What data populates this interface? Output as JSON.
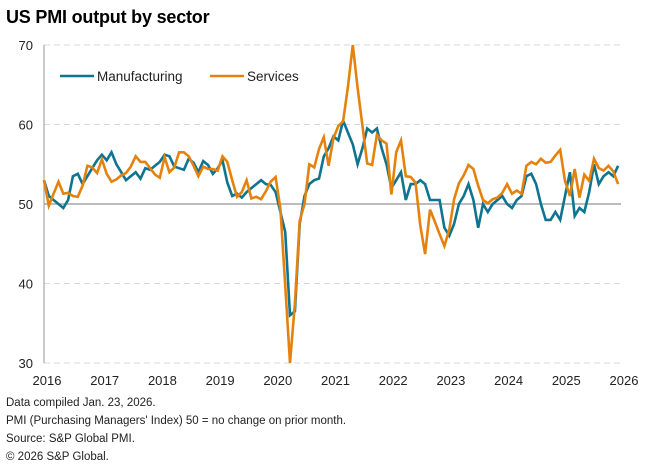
{
  "chart_data": {
    "type": "line",
    "title": "US PMI output by sector",
    "xlabel": "",
    "ylabel": "",
    "ylim": [
      30,
      70
    ],
    "yticks": [
      30,
      40,
      50,
      60,
      70
    ],
    "xticks": [
      "2016",
      "2017",
      "2018",
      "2019",
      "2020",
      "2021",
      "2022",
      "2023",
      "2024",
      "2025",
      "2026"
    ],
    "xrange": [
      2016.0,
      2026.0
    ],
    "reference_line": 50,
    "grid": "horizontal dashed",
    "legend_position": "top-left",
    "start": "2016-01",
    "frequency": "monthly",
    "series": [
      {
        "name": "Manufacturing",
        "color": "#0e7490",
        "values": [
          53.0,
          51.0,
          50.5,
          50.0,
          49.5,
          50.5,
          53.5,
          53.8,
          52.5,
          53.5,
          54.5,
          55.5,
          56.2,
          55.5,
          56.5,
          55.0,
          54.0,
          53.0,
          53.5,
          54.0,
          53.2,
          54.5,
          54.3,
          54.8,
          55.3,
          56.2,
          56.0,
          54.7,
          54.5,
          54.3,
          55.7,
          55.2,
          54.0,
          55.4,
          54.9,
          53.8,
          54.5,
          55.5,
          52.7,
          51.0,
          51.3,
          50.8,
          51.5,
          52.0,
          52.5,
          53.0,
          52.5,
          52.4,
          51.5,
          49.0,
          46.5,
          36.0,
          36.5,
          47.5,
          51.0,
          52.5,
          53.0,
          53.2,
          56.0,
          57.0,
          58.5,
          58.0,
          60.5,
          59.0,
          57.5,
          55.0,
          57.0,
          59.5,
          59.0,
          59.5,
          57.0,
          55.0,
          52.0,
          53.0,
          54.0,
          50.5,
          52.5,
          52.5,
          53.0,
          52.5,
          50.5,
          50.5,
          50.5,
          47.0,
          46.0,
          47.5,
          50.0,
          51.0,
          52.5,
          50.5,
          47.0,
          50.0,
          49.0,
          50.0,
          50.5,
          51.0,
          50.0,
          49.5,
          50.5,
          51.0,
          53.5,
          53.8,
          52.5,
          50.0,
          48.0,
          48.0,
          49.0,
          48.0,
          51.0,
          54.0,
          48.5,
          49.5,
          49.0,
          51.5,
          55.0,
          52.5,
          53.5,
          54.0,
          53.5,
          54.8
        ]
      },
      {
        "name": "Services",
        "color": "#e5820e",
        "values": [
          53.0,
          49.8,
          51.3,
          52.8,
          51.3,
          51.4,
          51.0,
          50.9,
          52.3,
          54.8,
          54.6,
          53.9,
          55.6,
          53.8,
          52.8,
          53.1,
          53.6,
          53.9,
          54.7,
          56.0,
          55.3,
          55.3,
          54.5,
          53.7,
          53.3,
          55.9,
          54.0,
          54.6,
          56.5,
          56.5,
          56.0,
          54.8,
          53.5,
          54.7,
          54.4,
          54.4,
          54.2,
          56.0,
          55.3,
          53.0,
          50.9,
          51.5,
          53.0,
          50.7,
          50.9,
          50.6,
          51.6,
          52.8,
          53.4,
          49.4,
          39.8,
          26.7,
          37.5,
          47.9,
          50.0,
          55.0,
          54.6,
          56.9,
          58.4,
          54.8,
          58.3,
          59.8,
          60.4,
          64.7,
          70.4,
          64.6,
          59.9,
          55.1,
          54.9,
          58.7,
          58.0,
          57.6,
          51.2,
          56.5,
          58.0,
          53.5,
          53.4,
          52.7,
          47.3,
          43.7,
          49.3,
          47.8,
          46.2,
          44.7,
          46.8,
          50.6,
          52.6,
          53.6,
          54.9,
          54.4,
          52.3,
          50.5,
          50.1,
          50.6,
          50.8,
          51.4,
          52.5,
          51.3,
          51.7,
          51.3,
          54.8,
          55.3,
          55.0,
          55.7,
          55.2,
          55.3,
          56.1,
          56.8,
          52.9,
          51.0,
          54.4,
          50.8,
          53.7,
          52.9,
          55.7,
          54.5,
          54.2,
          54.8,
          54.1,
          52.5
        ]
      }
    ]
  },
  "footnotes": [
    "Data compiled Jan. 23, 2026.",
    "PMI (Purchasing Managers' Index) 50 =  no change on prior month.",
    "Source: S&P Global PMI.",
    "© 2026 S&P Global."
  ]
}
